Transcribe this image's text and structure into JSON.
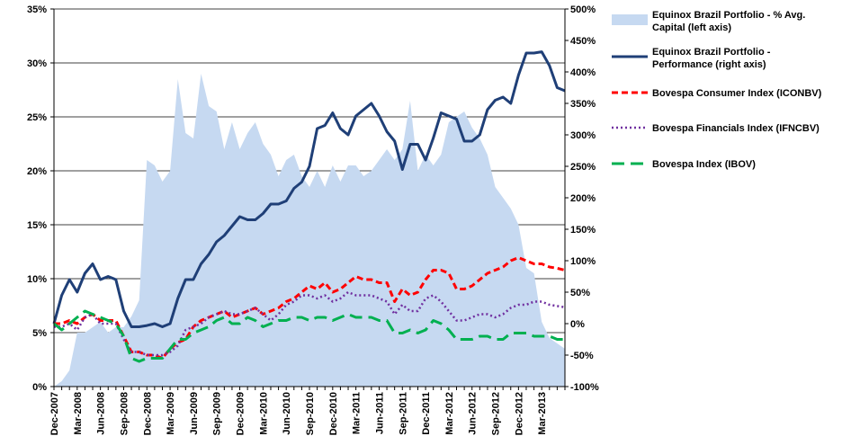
{
  "chart_data": {
    "type": "area+line",
    "title": "",
    "left_axis": {
      "ylim": [
        0,
        35
      ],
      "ticks": [
        0,
        5,
        10,
        15,
        20,
        25,
        30,
        35
      ],
      "tick_labels": [
        "0%",
        "5%",
        "10%",
        "15%",
        "20%",
        "25%",
        "30%",
        "35%"
      ]
    },
    "right_axis": {
      "ylim": [
        -100,
        500
      ],
      "ticks": [
        -100,
        -50,
        0,
        50,
        100,
        150,
        200,
        250,
        300,
        350,
        400,
        450,
        500
      ],
      "tick_labels": [
        "-100%",
        "-50%",
        "0%",
        "50%",
        "100%",
        "150%",
        "200%",
        "250%",
        "300%",
        "350%",
        "400%",
        "450%",
        "500%"
      ]
    },
    "x_tick_labels": [
      "Dec-2007",
      "Mar-2008",
      "Jun-2008",
      "Sep-2008",
      "Dec-2008",
      "Mar-2009",
      "Jun-2009",
      "Sep-2009",
      "Dec-2009",
      "Mar-2010",
      "Jun-2010",
      "Sep-2010",
      "Dec-2010",
      "Mar-2011",
      "Jun-2011",
      "Sep-2011",
      "Dec-2011",
      "Mar-2012",
      "Jun-2012",
      "Sep-2012",
      "Dec-2012",
      "Mar-2013"
    ],
    "grid": "horizontal",
    "legend_position": "right",
    "months": 67,
    "series": [
      {
        "name": "Equinox Brazil Portfolio - % Avg. Capital (left axis)",
        "axis": "left",
        "style": "area",
        "color": "#c6d9f1",
        "values": [
          0,
          0.5,
          1.5,
          5,
          5,
          5.5,
          6,
          5,
          5.5,
          5.5,
          6.5,
          8,
          21,
          20.5,
          19,
          20,
          28.5,
          23.5,
          23,
          29,
          26,
          25.5,
          22,
          24.5,
          22,
          23.5,
          24.5,
          22.5,
          21.5,
          19.5,
          21,
          21.5,
          19.5,
          18.5,
          20,
          18.5,
          20.5,
          19,
          20.5,
          20.5,
          19.5,
          20,
          21,
          22,
          21,
          22,
          26.5,
          20,
          21.5,
          20.5,
          21.5,
          24.5,
          25,
          25.5,
          24,
          23,
          21.5,
          18.5,
          17.5,
          16.5,
          15,
          11,
          10.5,
          6,
          4.5,
          4,
          3.5
        ]
      },
      {
        "name": "Equinox Brazil Portfolio - Performance (right axis)",
        "axis": "right",
        "style": "solid",
        "color": "#1f3f77",
        "values": [
          0,
          45,
          70,
          50,
          80,
          95,
          70,
          75,
          70,
          20,
          -5,
          -5,
          -3,
          0,
          -5,
          0,
          40,
          70,
          70,
          95,
          110,
          130,
          140,
          155,
          170,
          165,
          165,
          175,
          190,
          190,
          195,
          215,
          225,
          250,
          310,
          315,
          335,
          310,
          300,
          330,
          340,
          350,
          330,
          305,
          290,
          245,
          285,
          285,
          260,
          295,
          335,
          330,
          325,
          290,
          290,
          300,
          340,
          355,
          360,
          350,
          395,
          430,
          430,
          432,
          410,
          375,
          370
        ]
      },
      {
        "name": "Bovespa Consumer Index (ICONBV)",
        "axis": "right",
        "style": "dashed",
        "color": "#ff0000",
        "values": [
          0,
          0,
          5,
          0,
          10,
          15,
          5,
          5,
          5,
          -20,
          -45,
          -45,
          -50,
          -50,
          -55,
          -40,
          -30,
          -25,
          -5,
          5,
          10,
          15,
          20,
          10,
          15,
          20,
          25,
          15,
          20,
          25,
          35,
          40,
          50,
          60,
          55,
          65,
          50,
          55,
          65,
          75,
          70,
          70,
          65,
          65,
          35,
          55,
          45,
          50,
          70,
          85,
          85,
          80,
          55,
          55,
          60,
          70,
          80,
          85,
          90,
          100,
          105,
          100,
          95,
          95,
          90,
          88,
          85
        ]
      },
      {
        "name": "Bovespa Financials Index (IFNCBV)",
        "axis": "right",
        "style": "dotted",
        "color": "#7030a0",
        "values": [
          -5,
          -5,
          0,
          -10,
          10,
          15,
          0,
          0,
          0,
          -25,
          -45,
          -45,
          -50,
          -50,
          -50,
          -45,
          -35,
          -10,
          -5,
          0,
          10,
          15,
          20,
          15,
          15,
          20,
          25,
          15,
          5,
          15,
          30,
          35,
          45,
          45,
          40,
          45,
          35,
          40,
          50,
          45,
          45,
          45,
          40,
          35,
          15,
          30,
          20,
          20,
          40,
          45,
          35,
          20,
          5,
          5,
          10,
          15,
          15,
          10,
          15,
          25,
          30,
          30,
          35,
          35,
          30,
          28,
          26
        ]
      },
      {
        "name": "Bovespa Index (IBOV)",
        "axis": "right",
        "style": "long-dash",
        "color": "#00b050",
        "values": [
          0,
          -10,
          0,
          10,
          20,
          15,
          10,
          5,
          0,
          -20,
          -55,
          -60,
          -55,
          -55,
          -55,
          -40,
          -25,
          -25,
          -15,
          -10,
          -5,
          5,
          10,
          0,
          0,
          10,
          5,
          -5,
          0,
          5,
          5,
          10,
          10,
          5,
          10,
          10,
          5,
          10,
          15,
          10,
          10,
          10,
          5,
          5,
          -15,
          -15,
          -10,
          -15,
          -10,
          5,
          0,
          -10,
          -25,
          -25,
          -25,
          -20,
          -20,
          -25,
          -25,
          -15,
          -15,
          -15,
          -20,
          -20,
          -20,
          -25,
          -25
        ]
      }
    ]
  }
}
